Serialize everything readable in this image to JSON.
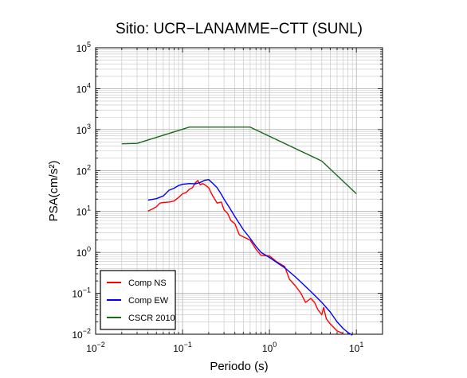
{
  "chart_data": {
    "type": "line",
    "title": "Sitio: UCR−LANAMME−CTT (SUNL)",
    "xlabel": "Periodo (s)",
    "ylabel": "PSA(cm/s²)",
    "xscale": "log",
    "yscale": "log",
    "xlim": [
      0.01,
      20
    ],
    "ylim": [
      0.01,
      100000
    ],
    "grid": true,
    "legend_position": "bottom-left",
    "x_ticks": [
      {
        "value": 0.01,
        "base": "10",
        "exp": "−2"
      },
      {
        "value": 0.1,
        "base": "10",
        "exp": "−1"
      },
      {
        "value": 1,
        "base": "10",
        "exp": "0"
      },
      {
        "value": 10,
        "base": "10",
        "exp": "1"
      }
    ],
    "y_ticks": [
      {
        "value": 0.01,
        "base": "10",
        "exp": "−2"
      },
      {
        "value": 0.1,
        "base": "10",
        "exp": "−1"
      },
      {
        "value": 1,
        "base": "10",
        "exp": "0"
      },
      {
        "value": 10,
        "base": "10",
        "exp": "1"
      },
      {
        "value": 100,
        "base": "10",
        "exp": "2"
      },
      {
        "value": 1000,
        "base": "10",
        "exp": "3"
      },
      {
        "value": 10000,
        "base": "10",
        "exp": "4"
      },
      {
        "value": 100000,
        "base": "10",
        "exp": "5"
      }
    ],
    "series": [
      {
        "name": "Comp NS",
        "color": "#ff0000",
        "points": [
          [
            0.04,
            10.2
          ],
          [
            0.045,
            11.5
          ],
          [
            0.05,
            13
          ],
          [
            0.055,
            16
          ],
          [
            0.06,
            16.5
          ],
          [
            0.07,
            17
          ],
          [
            0.08,
            18
          ],
          [
            0.09,
            22
          ],
          [
            0.1,
            27
          ],
          [
            0.11,
            29
          ],
          [
            0.12,
            35
          ],
          [
            0.13,
            38
          ],
          [
            0.14,
            50
          ],
          [
            0.15,
            57
          ],
          [
            0.16,
            45
          ],
          [
            0.17,
            48
          ],
          [
            0.18,
            45
          ],
          [
            0.2,
            38
          ],
          [
            0.22,
            25
          ],
          [
            0.25,
            16
          ],
          [
            0.28,
            17
          ],
          [
            0.3,
            11
          ],
          [
            0.33,
            9
          ],
          [
            0.36,
            6
          ],
          [
            0.4,
            5
          ],
          [
            0.45,
            2.7
          ],
          [
            0.5,
            2.4
          ],
          [
            0.6,
            2.0
          ],
          [
            0.7,
            1.2
          ],
          [
            0.8,
            0.85
          ],
          [
            1.0,
            0.82
          ],
          [
            1.2,
            0.6
          ],
          [
            1.5,
            0.45
          ],
          [
            1.7,
            0.22
          ],
          [
            2.0,
            0.15
          ],
          [
            2.3,
            0.1
          ],
          [
            2.6,
            0.06
          ],
          [
            3.0,
            0.075
          ],
          [
            3.3,
            0.06
          ],
          [
            3.6,
            0.04
          ],
          [
            4.0,
            0.03
          ],
          [
            4.2,
            0.045
          ],
          [
            4.5,
            0.024
          ],
          [
            5.0,
            0.018
          ],
          [
            6.0,
            0.012
          ],
          [
            7.0,
            0.0105
          ]
        ]
      },
      {
        "name": "Comp EW",
        "color": "#0000ff",
        "points": [
          [
            0.04,
            19
          ],
          [
            0.05,
            20.5
          ],
          [
            0.06,
            24
          ],
          [
            0.07,
            33
          ],
          [
            0.08,
            37
          ],
          [
            0.09,
            43
          ],
          [
            0.1,
            46
          ],
          [
            0.12,
            48
          ],
          [
            0.14,
            47
          ],
          [
            0.16,
            51
          ],
          [
            0.18,
            58
          ],
          [
            0.2,
            60
          ],
          [
            0.22,
            50
          ],
          [
            0.25,
            38
          ],
          [
            0.28,
            26
          ],
          [
            0.3,
            20
          ],
          [
            0.35,
            12
          ],
          [
            0.4,
            7.5
          ],
          [
            0.5,
            3.6
          ],
          [
            0.6,
            2.2
          ],
          [
            0.7,
            1.4
          ],
          [
            0.8,
            1.0
          ],
          [
            1.0,
            0.75
          ],
          [
            1.5,
            0.42
          ],
          [
            2.0,
            0.25
          ],
          [
            3.0,
            0.11
          ],
          [
            4.0,
            0.06
          ],
          [
            5.0,
            0.035
          ],
          [
            6.0,
            0.02
          ],
          [
            7.0,
            0.014
          ],
          [
            8.0,
            0.011
          ],
          [
            9.0,
            0.0095
          ]
        ]
      },
      {
        "name": "CSCR 2010",
        "color": "#1a6b1a",
        "points": [
          [
            0.02,
            450
          ],
          [
            0.03,
            460
          ],
          [
            0.12,
            1150
          ],
          [
            0.6,
            1150
          ],
          [
            4.0,
            170
          ],
          [
            10.0,
            27
          ]
        ]
      }
    ]
  }
}
